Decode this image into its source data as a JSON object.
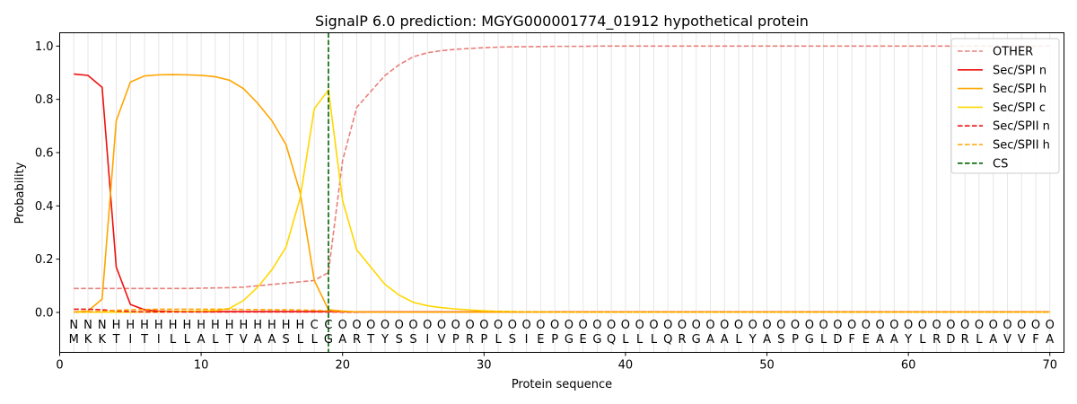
{
  "chart_data": {
    "type": "line",
    "title": "SignalP 6.0 prediction: MGYG000001774_01912 hypothetical protein",
    "xlabel": "Protein sequence",
    "ylabel": "Probability",
    "xlim": [
      0,
      71
    ],
    "ylim": [
      -0.15,
      1.05
    ],
    "xticks": [
      0,
      10,
      20,
      30,
      40,
      50,
      60,
      70
    ],
    "yticks": [
      0.0,
      0.2,
      0.4,
      0.6,
      0.8,
      1.0
    ],
    "grid": "vertical lines at each residue",
    "legend_position": "top-right",
    "sequence": [
      "M",
      "K",
      "K",
      "T",
      "I",
      "T",
      "I",
      "L",
      "L",
      "A",
      "L",
      "T",
      "V",
      "A",
      "A",
      "S",
      "L",
      "L",
      "G",
      "A",
      "R",
      "T",
      "Y",
      "S",
      "S",
      "I",
      "V",
      "P",
      "R",
      "P",
      "L",
      "S",
      "I",
      "E",
      "P",
      "G",
      "E",
      "G",
      "Q",
      "L",
      "L",
      "L",
      "Q",
      "R",
      "G",
      "A",
      "A",
      "L",
      "Y",
      "A",
      "S",
      "P",
      "G",
      "L",
      "D",
      "F",
      "E",
      "A",
      "A",
      "Y",
      "L",
      "R",
      "D",
      "R",
      "L",
      "A",
      "V",
      "V",
      "F",
      "A"
    ],
    "labels": [
      "N",
      "N",
      "N",
      "H",
      "H",
      "H",
      "H",
      "H",
      "H",
      "H",
      "H",
      "H",
      "H",
      "H",
      "H",
      "H",
      "H",
      "C",
      "C",
      "O",
      "O",
      "O",
      "O",
      "O",
      "O",
      "O",
      "O",
      "O",
      "O",
      "O",
      "O",
      "O",
      "O",
      "O",
      "O",
      "O",
      "O",
      "O",
      "O",
      "O",
      "O",
      "O",
      "O",
      "O",
      "O",
      "O",
      "O",
      "O",
      "O",
      "O",
      "O",
      "O",
      "O",
      "O",
      "O",
      "O",
      "O",
      "O",
      "O",
      "O",
      "O",
      "O",
      "O",
      "O",
      "O",
      "O",
      "O",
      "O",
      "O",
      "O"
    ],
    "label_colors": {
      "N": "#ff0000",
      "H": "#ffa500",
      "C": "#ffd700",
      "O": "#808080"
    },
    "cleavage_site": 19,
    "series": [
      {
        "name": "OTHER",
        "color": "#e8807a",
        "dash": true,
        "values": [
          0.09,
          0.09,
          0.09,
          0.09,
          0.09,
          0.09,
          0.09,
          0.09,
          0.09,
          0.091,
          0.092,
          0.093,
          0.095,
          0.1,
          0.105,
          0.11,
          0.115,
          0.12,
          0.15,
          0.57,
          0.77,
          0.83,
          0.89,
          0.93,
          0.96,
          0.975,
          0.983,
          0.988,
          0.991,
          0.994,
          0.996,
          0.997,
          0.998,
          0.998,
          0.999,
          0.999,
          0.999,
          1,
          1,
          1,
          1,
          1,
          1,
          1,
          1,
          1,
          1,
          1,
          1,
          1,
          1,
          1,
          1,
          1,
          1,
          1,
          1,
          1,
          1,
          1,
          1,
          1,
          1,
          1,
          1,
          1,
          1,
          1,
          1,
          1
        ]
      },
      {
        "name": "Sec/SPI n",
        "color": "#ee1111",
        "dash": false,
        "values": [
          0.895,
          0.89,
          0.845,
          0.17,
          0.03,
          0.01,
          0.005,
          0.004,
          0.003,
          0.003,
          0.003,
          0.003,
          0.003,
          0.003,
          0.003,
          0.003,
          0.003,
          0.003,
          0.003,
          0.003,
          0.002,
          0.002,
          0.002,
          0.002,
          0.002,
          0.002,
          0.002,
          0.002,
          0.002,
          0.002,
          0.002,
          0.002,
          0.002,
          0.002,
          0.002,
          0.002,
          0.002,
          0.002,
          0.002,
          0.002,
          0.002,
          0.002,
          0.002,
          0.002,
          0.002,
          0.002,
          0.002,
          0.002,
          0.002,
          0.002,
          0.002,
          0.002,
          0.002,
          0.002,
          0.002,
          0.002,
          0.002,
          0.002,
          0.002,
          0.002,
          0.002,
          0.002,
          0.002,
          0.002,
          0.002,
          0.002,
          0.002,
          0.002,
          0.002,
          0.002
        ]
      },
      {
        "name": "Sec/SPI h",
        "color": "#ffa500",
        "dash": false,
        "values": [
          0.002,
          0.005,
          0.05,
          0.72,
          0.865,
          0.888,
          0.892,
          0.893,
          0.892,
          0.89,
          0.885,
          0.872,
          0.84,
          0.785,
          0.72,
          0.63,
          0.45,
          0.12,
          0.01,
          0.005,
          0.002,
          0.001,
          0.001,
          0.001,
          0.001,
          0.001,
          0.001,
          0.001,
          0.001,
          0.001,
          0.001,
          0.001,
          0.001,
          0.001,
          0.001,
          0.001,
          0.001,
          0.001,
          0.001,
          0.001,
          0.001,
          0.001,
          0.001,
          0.001,
          0.001,
          0.001,
          0.001,
          0.001,
          0.001,
          0.001,
          0.001,
          0.001,
          0.001,
          0.001,
          0.001,
          0.001,
          0.001,
          0.001,
          0.001,
          0.001,
          0.001,
          0.001,
          0.001,
          0.001,
          0.001,
          0.001,
          0.001,
          0.001,
          0.001,
          0.001
        ]
      },
      {
        "name": "Sec/SPI c",
        "color": "#ffd700",
        "dash": false,
        "values": [
          0.001,
          0.001,
          0.001,
          0.001,
          0.001,
          0.002,
          0.002,
          0.003,
          0.004,
          0.005,
          0.007,
          0.015,
          0.045,
          0.095,
          0.16,
          0.245,
          0.43,
          0.765,
          0.835,
          0.42,
          0.235,
          0.17,
          0.105,
          0.065,
          0.038,
          0.025,
          0.018,
          0.013,
          0.009,
          0.006,
          0.004,
          0.003,
          0.002,
          0.002,
          0.001,
          0.001,
          0.001,
          0.001,
          0.001,
          0.001,
          0.001,
          0.001,
          0.001,
          0.001,
          0.001,
          0.001,
          0.001,
          0.001,
          0.001,
          0.001,
          0.001,
          0.001,
          0.001,
          0.001,
          0.001,
          0.001,
          0.001,
          0.001,
          0.001,
          0.001,
          0.001,
          0.001,
          0.001,
          0.001,
          0.001,
          0.001,
          0.001,
          0.001,
          0.001,
          0.001
        ]
      },
      {
        "name": "Sec/SPII n",
        "color": "#ee1111",
        "dash": true,
        "values": [
          0.012,
          0.012,
          0.01,
          0.005,
          0.003,
          0.002,
          0.002,
          0.002,
          0.002,
          0.002,
          0.002,
          0.002,
          0.002,
          0.002,
          0.002,
          0.002,
          0.002,
          0.002,
          0.002,
          0.001,
          0.001,
          0.001,
          0.001,
          0.001,
          0.001,
          0.001,
          0.001,
          0.001,
          0.001,
          0.001,
          0.001,
          0.001,
          0.001,
          0.001,
          0.001,
          0.001,
          0.001,
          0.001,
          0.001,
          0.001,
          0.001,
          0.001,
          0.001,
          0.001,
          0.001,
          0.001,
          0.001,
          0.001,
          0.001,
          0.001,
          0.001,
          0.001,
          0.001,
          0.001,
          0.001,
          0.001,
          0.001,
          0.001,
          0.001,
          0.001,
          0.001,
          0.001,
          0.001,
          0.001,
          0.001,
          0.001,
          0.001,
          0.001,
          0.001,
          0.001
        ]
      },
      {
        "name": "Sec/SPII h",
        "color": "#ffa500",
        "dash": true,
        "values": [
          0.001,
          0.002,
          0.004,
          0.008,
          0.01,
          0.011,
          0.012,
          0.012,
          0.012,
          0.012,
          0.012,
          0.012,
          0.011,
          0.011,
          0.01,
          0.01,
          0.009,
          0.008,
          0.006,
          0.003,
          0.002,
          0.001,
          0.001,
          0.001,
          0.001,
          0.001,
          0.001,
          0.001,
          0.001,
          0.001,
          0.001,
          0.001,
          0.001,
          0.001,
          0.001,
          0.001,
          0.001,
          0.001,
          0.001,
          0.001,
          0.001,
          0.001,
          0.001,
          0.001,
          0.001,
          0.001,
          0.001,
          0.001,
          0.001,
          0.001,
          0.001,
          0.001,
          0.001,
          0.001,
          0.001,
          0.001,
          0.001,
          0.001,
          0.001,
          0.001,
          0.001,
          0.001,
          0.001,
          0.001,
          0.001,
          0.001,
          0.001,
          0.001,
          0.001,
          0.001
        ]
      }
    ],
    "legend": [
      {
        "name": "OTHER",
        "color": "#e8807a",
        "dash": true
      },
      {
        "name": "Sec/SPI n",
        "color": "#ee1111",
        "dash": false
      },
      {
        "name": "Sec/SPI h",
        "color": "#ffa500",
        "dash": false
      },
      {
        "name": "Sec/SPI c",
        "color": "#ffd700",
        "dash": false
      },
      {
        "name": "Sec/SPII n",
        "color": "#ee1111",
        "dash": true
      },
      {
        "name": "Sec/SPII h",
        "color": "#ffa500",
        "dash": true
      },
      {
        "name": "CS",
        "color": "#006400",
        "dash": true
      }
    ]
  }
}
